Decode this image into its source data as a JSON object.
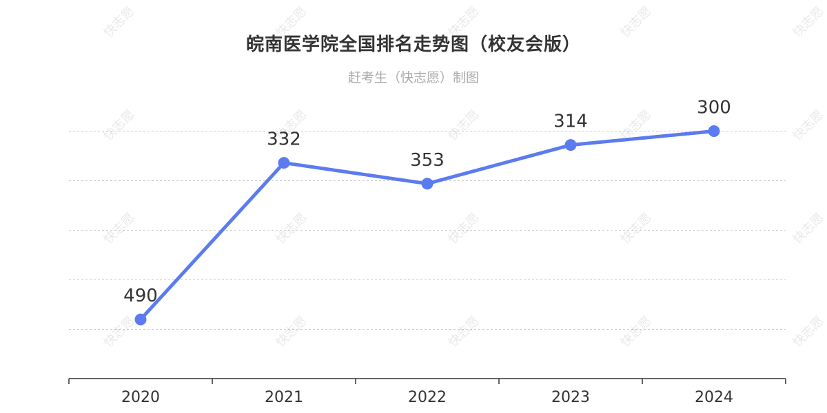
{
  "chart_data": {
    "type": "line",
    "title": "皖南医学院全国排名走势图（校友会版）",
    "subtitle": "赶考生（快志愿）制图",
    "categories": [
      "2020",
      "2021",
      "2022",
      "2023",
      "2024"
    ],
    "series": [
      {
        "values": [
          490,
          332,
          353,
          314,
          300
        ],
        "color": "#5b7bf0"
      }
    ],
    "y_inverted": true,
    "ylim": [
      250,
      550
    ],
    "y_gridlines": [
      300,
      350,
      400,
      450,
      500
    ],
    "grid": true,
    "legend": "none"
  },
  "watermark": {
    "text": "快志愿"
  },
  "colors": {
    "line": "#5b7bf0",
    "title": "#333333",
    "subtitle": "#aaaaaa",
    "grid": "#cccccc",
    "axis": "#333333",
    "label": "#333333"
  }
}
